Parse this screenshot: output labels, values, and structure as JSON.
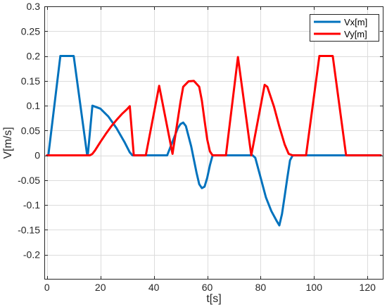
{
  "chart_data": {
    "type": "line",
    "xlabel": "t[s]",
    "ylabel": "V[m/s]",
    "xlim": [
      -1,
      126
    ],
    "ylim": [
      -0.25,
      0.3
    ],
    "grid": true,
    "legend_position": "top-right",
    "x_ticks": [
      0,
      20,
      40,
      60,
      80,
      100,
      120
    ],
    "x_tick_labels": [
      "0",
      "20",
      "40",
      "60",
      "80",
      "100",
      "120"
    ],
    "y_ticks": [
      -0.2,
      -0.15,
      -0.1,
      -0.05,
      0,
      0.05,
      0.1,
      0.15,
      0.2,
      0.25,
      0.3
    ],
    "y_tick_labels": [
      "-0.2",
      "-0.15",
      "-0.1",
      "-0.05",
      "0",
      "0.05",
      "0.1",
      "0.15",
      "0.2",
      "0.25",
      "0.3"
    ],
    "series": [
      {
        "name": "Vx[m]",
        "color": "#0072BD",
        "x": [
          0,
          0.5,
          5,
          10,
          15,
          15.3,
          17,
          20,
          23,
          26,
          29,
          31,
          32,
          36,
          40,
          45,
          49,
          50,
          51,
          52,
          54,
          56,
          57,
          58,
          59,
          60,
          61,
          62,
          67,
          72,
          76,
          77,
          78,
          80,
          82,
          84,
          86,
          87,
          88,
          89,
          90,
          91,
          92,
          97,
          100,
          105,
          110,
          115,
          120,
          125
        ],
        "y": [
          0,
          0,
          0.2,
          0.2,
          0.002,
          0.002,
          0.1,
          0.094,
          0.078,
          0.055,
          0.027,
          0.006,
          0,
          0,
          0,
          0,
          0.055,
          0.063,
          0.066,
          0.059,
          0.018,
          -0.035,
          -0.058,
          -0.066,
          -0.063,
          -0.045,
          -0.02,
          0,
          0,
          0,
          0,
          0,
          -0.005,
          -0.045,
          -0.085,
          -0.112,
          -0.132,
          -0.141,
          -0.118,
          -0.082,
          -0.045,
          -0.01,
          0,
          0,
          0,
          0,
          0,
          0,
          0,
          0
        ]
      },
      {
        "name": "Vy[m]",
        "color": "#FF0000",
        "x": [
          0,
          15,
          16,
          17,
          18,
          20,
          22,
          24,
          26,
          28,
          30,
          31,
          32.5,
          37,
          42,
          47,
          50,
          51,
          53,
          55,
          57,
          58,
          59,
          60,
          61,
          62,
          67,
          71.5,
          76.5,
          81.5,
          82.5,
          85,
          87,
          89,
          90.5,
          92,
          97,
          102,
          107,
          112,
          120,
          125
        ],
        "y": [
          0,
          0,
          0,
          0.003,
          0.01,
          0.027,
          0.043,
          0.058,
          0.071,
          0.083,
          0.093,
          0.099,
          0,
          0,
          0.14,
          0.003,
          0.108,
          0.138,
          0.149,
          0.15,
          0.138,
          0.11,
          0.07,
          0.032,
          0.008,
          0,
          0,
          0.198,
          0,
          0.142,
          0.138,
          0.098,
          0.058,
          0.022,
          0.003,
          0,
          0,
          0.2,
          0.2,
          0,
          0,
          0
        ]
      }
    ]
  }
}
